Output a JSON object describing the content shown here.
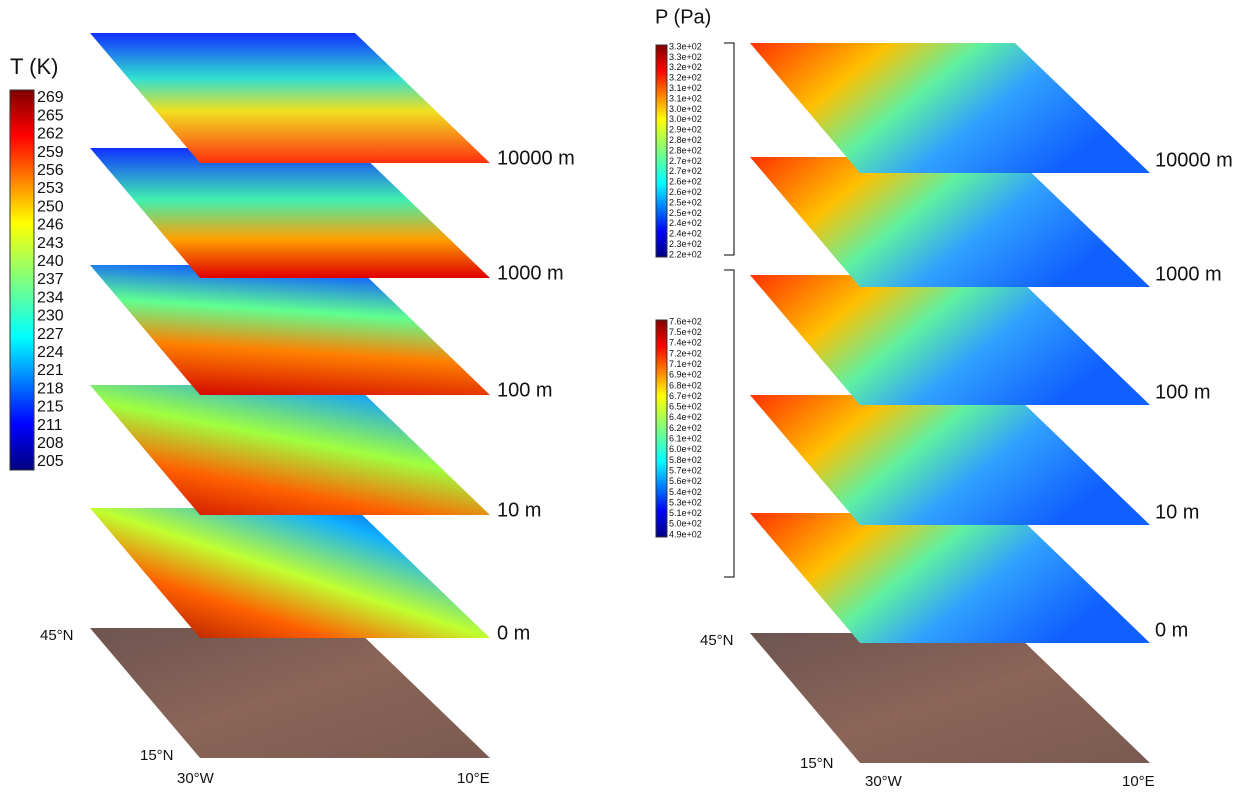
{
  "left": {
    "title": "T (K)",
    "colorbar": [
      "269",
      "265",
      "262",
      "259",
      "256",
      "253",
      "250",
      "246",
      "243",
      "240",
      "237",
      "234",
      "230",
      "227",
      "224",
      "221",
      "218",
      "215",
      "211",
      "208",
      "205"
    ],
    "layers": [
      "10000 m",
      "1000 m",
      "100 m",
      "10 m",
      "0 m"
    ],
    "corners": {
      "north": "45°N",
      "south": "15°N",
      "west": "30°W",
      "east": "10°E"
    }
  },
  "right": {
    "title": "P (Pa)",
    "colorbars": [
      [
        "3.3e+02",
        "3.3e+02",
        "3.2e+02",
        "3.2e+02",
        "3.1e+02",
        "3.1e+02",
        "3.0e+02",
        "3.0e+02",
        "2.9e+02",
        "2.8e+02",
        "2.8e+02",
        "2.7e+02",
        "2.7e+02",
        "2.6e+02",
        "2.6e+02",
        "2.5e+02",
        "2.5e+02",
        "2.4e+02",
        "2.4e+02",
        "2.3e+02",
        "2.2e+02"
      ],
      [
        "7.6e+02",
        "7.5e+02",
        "7.4e+02",
        "7.2e+02",
        "7.1e+02",
        "6.9e+02",
        "6.8e+02",
        "6.7e+02",
        "6.5e+02",
        "6.4e+02",
        "6.2e+02",
        "6.1e+02",
        "6.0e+02",
        "5.8e+02",
        "5.7e+02",
        "5.6e+02",
        "5.4e+02",
        "5.3e+02",
        "5.1e+02",
        "5.0e+02",
        "4.9e+02"
      ]
    ],
    "layers": [
      "10000 m",
      "1000 m",
      "100 m",
      "10 m",
      "0 m"
    ],
    "corners": {
      "north": "45°N",
      "south": "15°N",
      "west": "30°W",
      "east": "10°E"
    }
  }
}
